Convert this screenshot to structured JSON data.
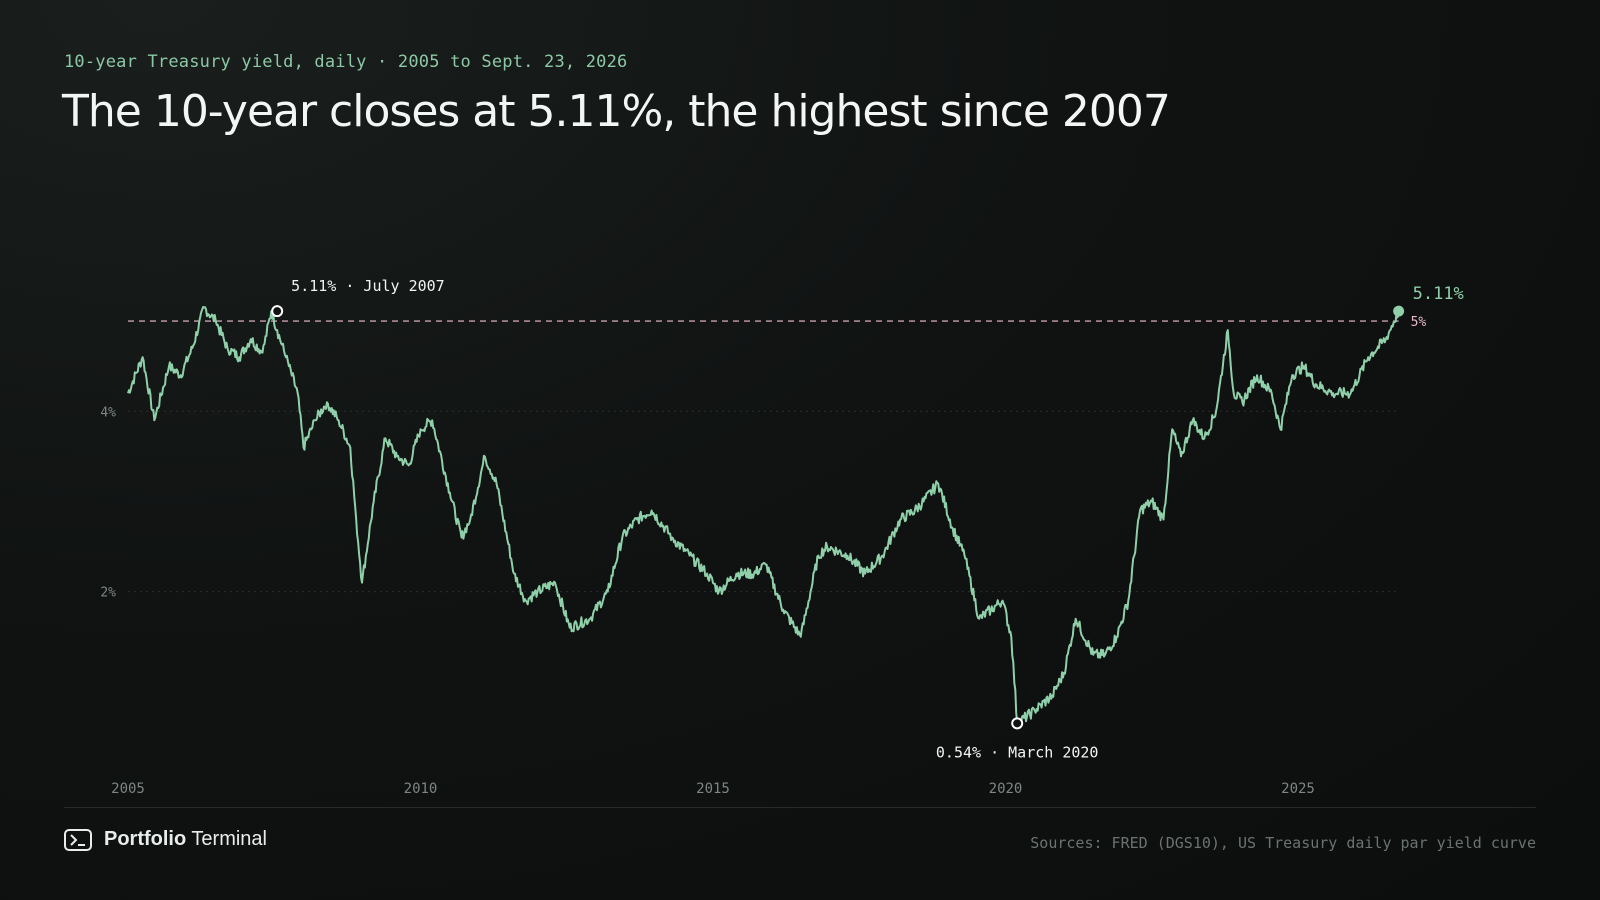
{
  "kicker": "10-year Treasury yield, daily · 2005 to Sept. 23, 2026",
  "headline": "The 10-year closes at 5.11%, the highest since 2007",
  "footer": {
    "brand_strong": "Portfolio",
    "brand_light": "Terminal",
    "brand_icon": "terminal-icon",
    "sources": "Sources: FRED (DGS10), US Treasury daily par yield curve"
  },
  "colors": {
    "line": "#8fcfa9",
    "reference": "#e9b9c6",
    "grid": "#2a2f2d",
    "tick_text": "#7d8682",
    "annotation_text": "#f2f4f3"
  },
  "chart_data": {
    "type": "line",
    "title": "",
    "xlabel": "",
    "ylabel": "",
    "xlim": [
      2005,
      2027
    ],
    "ylim": [
      0.3,
      5.4
    ],
    "x_ticks": [
      2005,
      2010,
      2015,
      2020,
      2025
    ],
    "y_ticks": [
      {
        "value": 2,
        "label": "2%"
      },
      {
        "value": 4,
        "label": "4%"
      }
    ],
    "grid": "horizontal dotted",
    "reference_line": {
      "value": 5,
      "label": "5%"
    },
    "series": [
      {
        "x": [
          2005.0,
          2005.25,
          2005.45,
          2005.7,
          2005.9,
          2006.1,
          2006.3,
          2006.5,
          2006.7,
          2006.9,
          2007.1,
          2007.3,
          2007.45,
          2007.55,
          2007.7,
          2007.9,
          2008.0,
          2008.2,
          2008.4,
          2008.6,
          2008.8,
          2008.9,
          2009.0,
          2009.2,
          2009.4,
          2009.6,
          2009.8,
          2010.0,
          2010.2,
          2010.5,
          2010.7,
          2010.85,
          2011.1,
          2011.3,
          2011.6,
          2011.8,
          2012.0,
          2012.3,
          2012.55,
          2012.9,
          2013.2,
          2013.45,
          2013.7,
          2013.95,
          2014.3,
          2014.6,
          2014.9,
          2015.1,
          2015.4,
          2015.7,
          2015.9,
          2016.2,
          2016.5,
          2016.8,
          2016.95,
          2017.3,
          2017.6,
          2017.9,
          2018.2,
          2018.45,
          2018.6,
          2018.85,
          2019.1,
          2019.3,
          2019.55,
          2019.75,
          2019.95,
          2020.1,
          2020.2,
          2020.5,
          2020.8,
          2021.0,
          2021.2,
          2021.5,
          2021.7,
          2021.9,
          2022.1,
          2022.3,
          2022.5,
          2022.7,
          2022.85,
          2023.0,
          2023.2,
          2023.4,
          2023.6,
          2023.8,
          2023.9,
          2024.05,
          2024.3,
          2024.55,
          2024.7,
          2024.9,
          2025.1,
          2025.3,
          2025.6,
          2025.9,
          2026.2,
          2026.5,
          2026.72
        ],
        "y": [
          4.2,
          4.6,
          3.9,
          4.5,
          4.4,
          4.7,
          5.15,
          5.0,
          4.7,
          4.6,
          4.8,
          4.65,
          5.11,
          4.9,
          4.6,
          4.2,
          3.6,
          3.9,
          4.1,
          3.9,
          3.6,
          2.8,
          2.1,
          3.0,
          3.7,
          3.5,
          3.4,
          3.8,
          3.9,
          3.1,
          2.6,
          2.8,
          3.5,
          3.2,
          2.2,
          1.9,
          2.0,
          2.1,
          1.6,
          1.7,
          2.0,
          2.6,
          2.8,
          2.9,
          2.6,
          2.4,
          2.2,
          2.0,
          2.2,
          2.2,
          2.3,
          1.8,
          1.5,
          2.4,
          2.5,
          2.4,
          2.2,
          2.4,
          2.8,
          2.9,
          3.0,
          3.2,
          2.7,
          2.4,
          1.7,
          1.8,
          1.9,
          1.5,
          0.54,
          0.68,
          0.85,
          1.1,
          1.7,
          1.3,
          1.3,
          1.5,
          1.9,
          2.9,
          3.0,
          2.8,
          3.8,
          3.5,
          3.9,
          3.7,
          4.0,
          4.9,
          4.2,
          4.1,
          4.4,
          4.2,
          3.8,
          4.4,
          4.5,
          4.3,
          4.2,
          4.2,
          4.6,
          4.8,
          5.11
        ]
      }
    ],
    "annotations": [
      {
        "x": 2007.55,
        "y": 5.11,
        "label": "5.11% · July 2007"
      },
      {
        "x": 2020.2,
        "y": 0.54,
        "label": "0.54% · March 2020"
      },
      {
        "x": 2026.72,
        "y": 5.11,
        "label": "5.11%"
      }
    ]
  }
}
